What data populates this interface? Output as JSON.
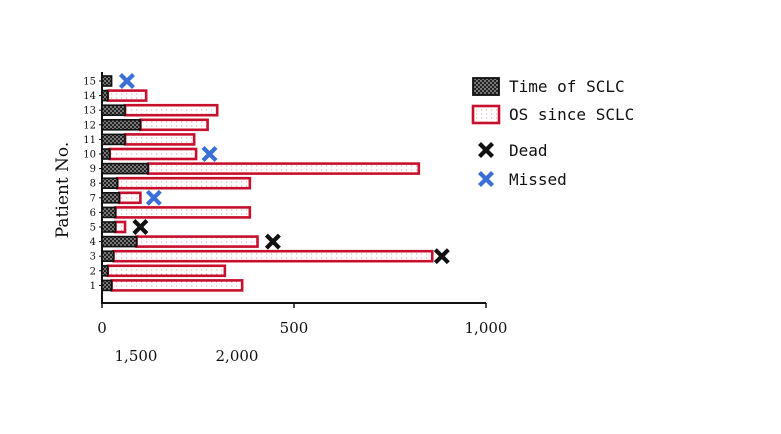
{
  "chart_data": {
    "type": "bar",
    "orientation": "horizontal",
    "stacked": true,
    "ylabel": "Patient No.",
    "xlabel": "",
    "x_tick_labels_row1": [
      "0",
      "500",
      "1,000"
    ],
    "x_tick_labels_row2": [
      "1,500",
      "2,000"
    ],
    "xlim": [
      0,
      1000
    ],
    "categories": [
      "1",
      "2",
      "3",
      "4",
      "5",
      "6",
      "7",
      "8",
      "9",
      "10",
      "11",
      "12",
      "13",
      "14",
      "15"
    ],
    "series": [
      {
        "name": "Time of SCLC",
        "color": "#1a1a1a",
        "pattern": "checkered",
        "values": [
          25,
          15,
          30,
          90,
          35,
          35,
          45,
          40,
          120,
          20,
          60,
          100,
          60,
          15,
          25
        ]
      },
      {
        "name": "OS since SCLC",
        "color": "#c8102e",
        "pattern": "dotted",
        "values": [
          340,
          305,
          830,
          315,
          25,
          350,
          55,
          345,
          705,
          225,
          180,
          175,
          240,
          100,
          0
        ]
      }
    ],
    "markers": [
      {
        "name": "Dead",
        "color": "#111111",
        "points": [
          {
            "patient": 3,
            "x": 885
          },
          {
            "patient": 4,
            "x": 445
          },
          {
            "patient": 5,
            "x": 100
          }
        ]
      },
      {
        "name": "Missed",
        "color": "#3a6fd8",
        "points": [
          {
            "patient": 15,
            "x": 65
          },
          {
            "patient": 10,
            "x": 280
          },
          {
            "patient": 7,
            "x": 135
          }
        ]
      }
    ],
    "legend": {
      "placement": "right",
      "entries": [
        "Time of SCLC",
        "OS since SCLC",
        "Dead",
        "Missed"
      ]
    }
  }
}
